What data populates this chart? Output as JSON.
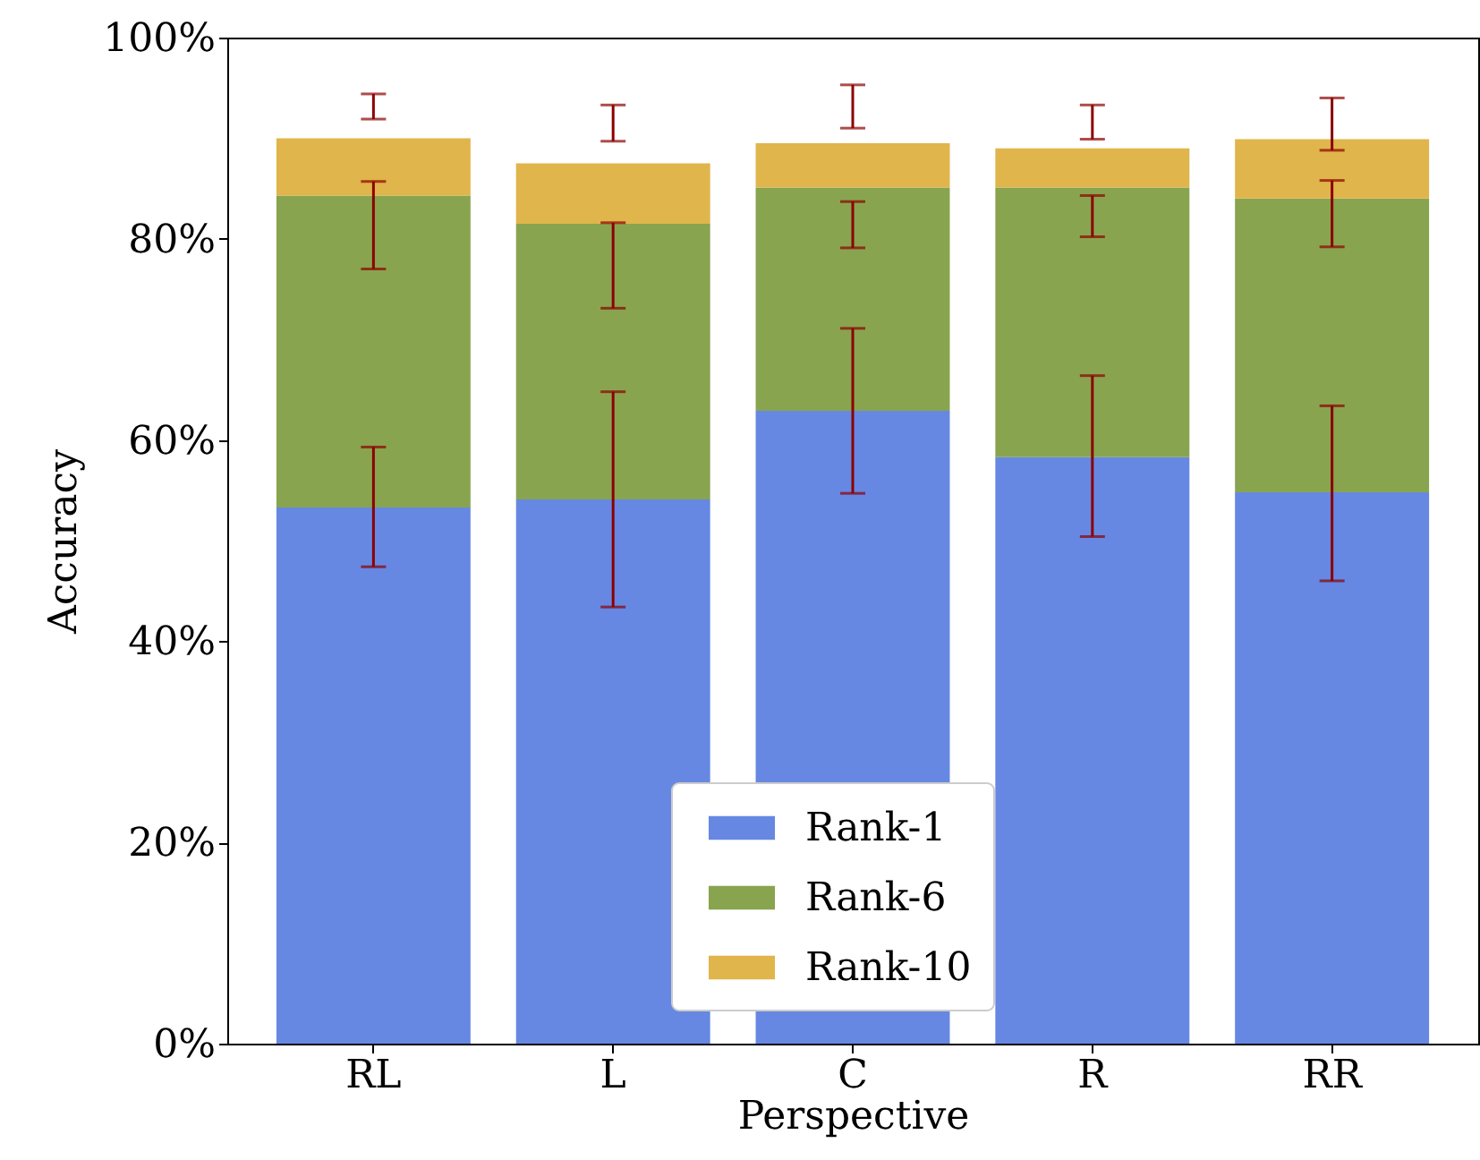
{
  "chart_data": {
    "type": "bar",
    "stacked": true,
    "xlabel": "Perspective",
    "ylabel": "Accuracy",
    "categories": [
      "RL",
      "L",
      "C",
      "R",
      "RR"
    ],
    "series": [
      {
        "name": "Rank-1",
        "color": "#6688e3",
        "values": [
          53.3,
          54.1,
          62.9,
          58.3,
          54.8
        ],
        "errors": [
          [
            47.4,
            59.3
          ],
          [
            43.4,
            64.8
          ],
          [
            54.7,
            71.1
          ],
          [
            50.4,
            66.4
          ],
          [
            46.0,
            63.4
          ]
        ]
      },
      {
        "name": "Rank-6",
        "color": "#89a44f",
        "values": [
          31.0,
          27.4,
          22.2,
          26.8,
          29.2
        ],
        "errors": [
          [
            77.0,
            85.7
          ],
          [
            73.1,
            81.6
          ],
          [
            79.1,
            83.7
          ],
          [
            80.2,
            84.3
          ],
          [
            79.2,
            85.8
          ]
        ]
      },
      {
        "name": "Rank-10",
        "color": "#e0b54b",
        "values": [
          5.7,
          6.0,
          4.4,
          3.9,
          5.9
        ],
        "errors": [
          [
            91.9,
            94.4
          ],
          [
            89.7,
            93.3
          ],
          [
            91.0,
            95.3
          ],
          [
            89.9,
            93.3
          ],
          [
            88.8,
            94.0
          ]
        ]
      }
    ],
    "ylim": [
      0,
      100
    ],
    "yticks": [
      {
        "value": 0,
        "label": "0%"
      },
      {
        "value": 20,
        "label": "20%"
      },
      {
        "value": 40,
        "label": "40%"
      },
      {
        "value": 60,
        "label": "60%"
      },
      {
        "value": 80,
        "label": "80%"
      },
      {
        "value": 100,
        "label": "100%"
      }
    ],
    "grid": false,
    "legend": "bottom"
  }
}
